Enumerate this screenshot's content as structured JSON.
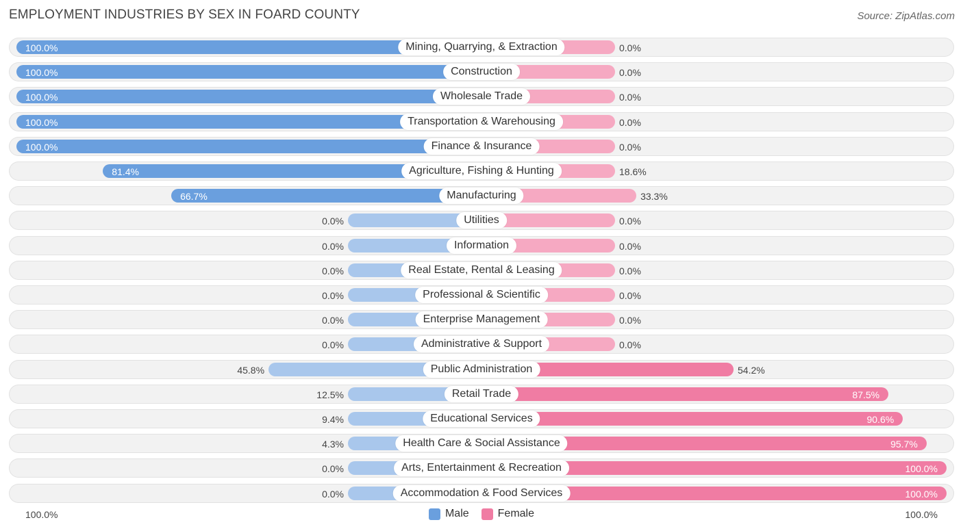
{
  "title": "EMPLOYMENT INDUSTRIES BY SEX IN FOARD COUNTY",
  "source": "Source: ZipAtlas.com",
  "colors": {
    "male": "#6a9fde",
    "male_light": "#a9c7ec",
    "female": "#f07ca3",
    "female_light": "#f6a9c2"
  },
  "legend": {
    "male": "Male",
    "female": "Female"
  },
  "axis": {
    "left_label": "100.0%",
    "right_label": "100.0%"
  },
  "chart_data": {
    "type": "bar",
    "orientation": "horizontal-diverging",
    "title": "EMPLOYMENT INDUSTRIES BY SEX IN FOARD COUNTY",
    "xlim": [
      -100,
      100
    ],
    "categories": [
      "Mining, Quarrying, & Extraction",
      "Construction",
      "Wholesale Trade",
      "Transportation & Warehousing",
      "Finance & Insurance",
      "Agriculture, Fishing & Hunting",
      "Manufacturing",
      "Utilities",
      "Information",
      "Real Estate, Rental & Leasing",
      "Professional & Scientific",
      "Enterprise Management",
      "Administrative & Support",
      "Public Administration",
      "Retail Trade",
      "Educational Services",
      "Health Care & Social Assistance",
      "Arts, Entertainment & Recreation",
      "Accommodation & Food Services"
    ],
    "series": [
      {
        "name": "Male",
        "values": [
          100.0,
          100.0,
          100.0,
          100.0,
          100.0,
          81.4,
          66.7,
          0.0,
          0.0,
          0.0,
          0.0,
          0.0,
          0.0,
          45.8,
          12.5,
          9.4,
          4.3,
          0.0,
          0.0
        ],
        "labels": [
          "100.0%",
          "100.0%",
          "100.0%",
          "100.0%",
          "100.0%",
          "81.4%",
          "66.7%",
          "0.0%",
          "0.0%",
          "0.0%",
          "0.0%",
          "0.0%",
          "0.0%",
          "45.8%",
          "12.5%",
          "9.4%",
          "4.3%",
          "0.0%",
          "0.0%"
        ]
      },
      {
        "name": "Female",
        "values": [
          0.0,
          0.0,
          0.0,
          0.0,
          0.0,
          18.6,
          33.3,
          0.0,
          0.0,
          0.0,
          0.0,
          0.0,
          0.0,
          54.2,
          87.5,
          90.6,
          95.7,
          100.0,
          100.0
        ],
        "labels": [
          "0.0%",
          "0.0%",
          "0.0%",
          "0.0%",
          "0.0%",
          "18.6%",
          "33.3%",
          "0.0%",
          "0.0%",
          "0.0%",
          "0.0%",
          "0.0%",
          "0.0%",
          "54.2%",
          "87.5%",
          "90.6%",
          "95.7%",
          "100.0%",
          "100.0%"
        ]
      }
    ]
  }
}
